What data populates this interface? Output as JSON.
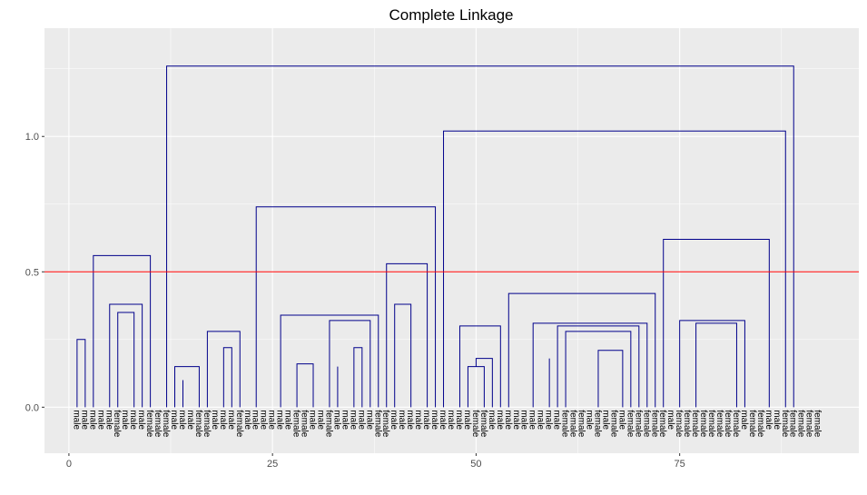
{
  "chart_data": {
    "type": "dendrogram",
    "title": "Complete Linkage",
    "xlabel": "",
    "ylabel": "",
    "xlim": [
      -3,
      97
    ],
    "ylim": [
      -0.17,
      1.4
    ],
    "x_ticks": [
      0,
      25,
      50,
      75
    ],
    "y_ticks": [
      0.0,
      0.5,
      1.0
    ],
    "y_tick_labels": [
      "0.0",
      "0.5",
      "1.0"
    ],
    "x_tick_labels": [
      "0",
      "25",
      "50",
      "75"
    ],
    "grid": true,
    "cut_height": 0.5,
    "colors": {
      "panel": "#ebebeb",
      "grid": "#ffffff",
      "branch": "#00008b",
      "cut_line": "#ff0000"
    },
    "leaf_labels": [
      "male",
      "male",
      "male",
      "male",
      "male",
      "female",
      "male",
      "male",
      "male",
      "female",
      "female",
      "female",
      "male",
      "male",
      "male",
      "female",
      "female",
      "male",
      "male",
      "male",
      "female",
      "male",
      "male",
      "male",
      "male",
      "male",
      "male",
      "female",
      "female",
      "male",
      "male",
      "female",
      "male",
      "male",
      "male",
      "male",
      "male",
      "female",
      "female",
      "male",
      "male",
      "male",
      "male",
      "male",
      "male",
      "male",
      "male",
      "male",
      "male",
      "female",
      "female",
      "male",
      "male",
      "male",
      "male",
      "male",
      "male",
      "male",
      "male",
      "male",
      "female",
      "female",
      "female",
      "male",
      "female",
      "male",
      "female",
      "male",
      "female",
      "female",
      "female",
      "female",
      "female",
      "male",
      "female",
      "female",
      "female",
      "female",
      "female",
      "female",
      "female",
      "female",
      "male",
      "female",
      "female",
      "male",
      "male",
      "female",
      "female",
      "female",
      "female",
      "female"
    ],
    "merges": [
      {
        "l": 2,
        "r": 3,
        "h": 0.08
      },
      {
        "l": 4,
        "r": 5,
        "h": 0.13
      },
      {
        "l": -2,
        "r": -1,
        "h": 0.25
      },
      {
        "l": 7,
        "r": 8,
        "h": 0.12
      },
      {
        "l": 6,
        "r": -4,
        "h": 0.21
      },
      {
        "l": 9,
        "r": 10,
        "h": 0.2
      },
      {
        "l": 12,
        "r": 13,
        "h": 0.1
      },
      {
        "l": 11,
        "r": -7,
        "h": 0.23
      },
      {
        "l": -6,
        "r": -8,
        "h": 0.35
      },
      {
        "l": -5,
        "r": -9,
        "h": 0.38
      },
      {
        "l": -3,
        "r": -10,
        "h": 0.56
      },
      {
        "l": 1,
        "r": -11,
        "h": 0.77
      },
      {
        "l": 15,
        "r": 16,
        "h": 0.06
      },
      {
        "l": 18,
        "r": 19,
        "h": 0.01
      },
      {
        "l": -14,
        "r": 20,
        "h": 0.1
      },
      {
        "l": 17,
        "r": -15,
        "h": 0.13
      },
      {
        "l": -13,
        "r": -16,
        "h": 0.15
      },
      {
        "l": 22,
        "r": 23,
        "h": 0.09
      },
      {
        "l": 21,
        "r": -18,
        "h": 0.14
      },
      {
        "l": 24,
        "r": 25,
        "h": 0.15
      },
      {
        "l": -19,
        "r": -20,
        "h": 0.22
      },
      {
        "l": -17,
        "r": -21,
        "h": 0.28
      },
      {
        "l": 14,
        "r": -22,
        "h": 0.37
      },
      {
        "l": 28,
        "r": 29,
        "h": 0.07
      },
      {
        "l": 27,
        "r": -24,
        "h": 0.1
      },
      {
        "l": 26,
        "r": -25,
        "h": 0.19
      },
      {
        "l": 32,
        "r": 33,
        "h": 0.04
      },
      {
        "l": 31,
        "r": -27,
        "h": 0.1
      },
      {
        "l": 35,
        "r": 36,
        "h": 0.12
      },
      {
        "l": 34,
        "r": -29,
        "h": 0.16
      },
      {
        "l": -28,
        "r": -30,
        "h": 0.16
      },
      {
        "l": 30,
        "r": -31,
        "h": 0.13
      },
      {
        "l": 38,
        "r": 39,
        "h": 0.07
      },
      {
        "l": -33,
        "r": 40,
        "h": 0.15
      },
      {
        "l": 37,
        "r": -34,
        "h": 0.19
      },
      {
        "l": -35,
        "r": -36,
        "h": 0.22
      },
      {
        "l": -32,
        "r": -37,
        "h": 0.32
      },
      {
        "l": -26,
        "r": -38,
        "h": 0.34
      },
      {
        "l": 42,
        "r": 43,
        "h": 0.15
      },
      {
        "l": 45,
        "r": 46,
        "h": 0.12
      },
      {
        "l": 44,
        "r": -41,
        "h": 0.2
      },
      {
        "l": -40,
        "r": -42,
        "h": 0.38
      },
      {
        "l": 41,
        "r": -43,
        "h": 0.41
      },
      {
        "l": -39,
        "r": -44,
        "h": 0.53
      },
      {
        "l": -23,
        "r": -45,
        "h": 0.74
      },
      {
        "l": 49,
        "r": 50,
        "h": 0.1
      },
      {
        "l": 48,
        "r": -47,
        "h": 0.17
      },
      {
        "l": 52,
        "r": 53,
        "h": 0.08
      },
      {
        "l": 55,
        "r": 56,
        "h": 0.06
      },
      {
        "l": 54,
        "r": -50,
        "h": 0.09
      },
      {
        "l": -49,
        "r": -51,
        "h": 0.15
      },
      {
        "l": 51,
        "r": -52,
        "h": 0.18
      },
      {
        "l": -48,
        "r": -53,
        "h": 0.3
      },
      {
        "l": 59,
        "r": 60,
        "h": 0.04
      },
      {
        "l": 58,
        "r": -55,
        "h": 0.11
      },
      {
        "l": 57,
        "r": -56,
        "h": 0.15
      },
      {
        "l": 62,
        "r": 63,
        "h": 0.09
      },
      {
        "l": 61,
        "r": -58,
        "h": 0.14
      },
      {
        "l": -59,
        "r": 64,
        "h": 0.18
      },
      {
        "l": 65,
        "r": 66,
        "h": 0.15
      },
      {
        "l": 70,
        "r": 71,
        "h": 0.05
      },
      {
        "l": 69,
        "r": -62,
        "h": 0.08
      },
      {
        "l": 68,
        "r": -63,
        "h": 0.13
      },
      {
        "l": 67,
        "r": -64,
        "h": 0.13
      },
      {
        "l": 74,
        "r": 75,
        "h": 0.1
      },
      {
        "l": 73,
        "r": -66,
        "h": 0.14
      },
      {
        "l": 72,
        "r": -67,
        "h": 0.07
      },
      {
        "l": -65,
        "r": -68,
        "h": 0.21
      },
      {
        "l": -61,
        "r": -69,
        "h": 0.28
      },
      {
        "l": -60,
        "r": -70,
        "h": 0.3
      },
      {
        "l": -57,
        "r": -71,
        "h": 0.31
      },
      {
        "l": -54,
        "r": -72,
        "h": 0.42
      },
      {
        "l": 79,
        "r": 80,
        "h": 0.13
      },
      {
        "l": 78,
        "r": -74,
        "h": 0.23
      },
      {
        "l": 82,
        "r": 83,
        "h": 0.09
      },
      {
        "l": 81,
        "r": -76,
        "h": 0.17
      },
      {
        "l": 85,
        "r": 86,
        "h": 0.1
      },
      {
        "l": 84,
        "r": -78,
        "h": 0.24
      },
      {
        "l": 89,
        "r": 90,
        "h": 0.12
      },
      {
        "l": 88,
        "r": -80,
        "h": 0.22
      },
      {
        "l": 87,
        "r": -81,
        "h": 0.24
      },
      {
        "l": -77,
        "r": -82,
        "h": 0.31
      },
      {
        "l": -75,
        "r": -83,
        "h": 0.32
      },
      {
        "l": 77,
        "r": -84,
        "h": 0.48
      },
      {
        "l": 76,
        "r": -85,
        "h": 0.12
      },
      {
        "l": -73,
        "r": -86,
        "h": 0.62
      },
      {
        "l": 47,
        "r": -87,
        "h": 0.83
      },
      {
        "l": -46,
        "r": -88,
        "h": 1.02
      },
      {
        "l": -12,
        "r": -89,
        "h": 1.26
      }
    ]
  }
}
